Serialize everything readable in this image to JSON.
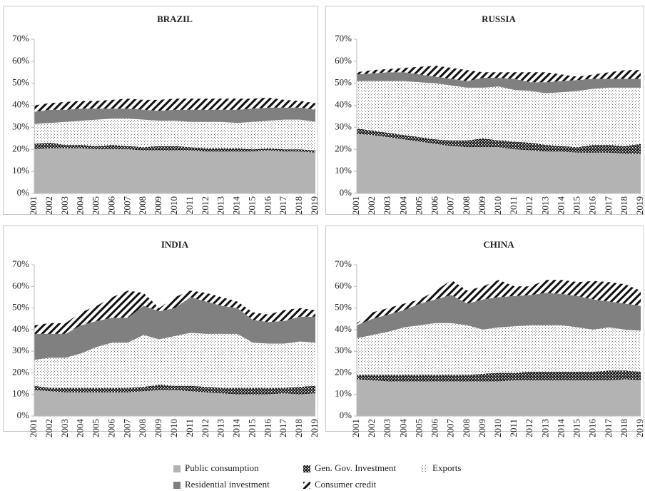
{
  "chart_data": [
    {
      "type": "stacked-area",
      "title": "BRAZIL",
      "x": [
        "2001",
        "2002",
        "2003",
        "2004",
        "2005",
        "2006",
        "2007",
        "2008",
        "2009",
        "2010",
        "2011",
        "2012",
        "2013",
        "2014",
        "2015",
        "2016",
        "2017",
        "2018",
        "2019"
      ],
      "ylim": [
        0,
        70
      ],
      "yticks": [
        {
          "value": 0,
          "label": "0%"
        },
        {
          "value": 10,
          "label": "10%"
        },
        {
          "value": 20,
          "label": "20%"
        },
        {
          "value": 30,
          "label": "30%"
        },
        {
          "value": 40,
          "label": "40%"
        },
        {
          "value": 50,
          "label": "50%"
        },
        {
          "value": 60,
          "label": "60%"
        },
        {
          "value": 70,
          "label": "70%"
        }
      ],
      "series": [
        {
          "name": "Public consumption",
          "color": "#b3b3b3",
          "pattern": "solid",
          "values": [
            20,
            20.5,
            20.5,
            20.5,
            20,
            20,
            20,
            19.5,
            19.5,
            19.5,
            19.5,
            19,
            19,
            19,
            19,
            19.5,
            19,
            19,
            18.5
          ]
        },
        {
          "name": "Gen. Gov. Investment",
          "color": "#111111",
          "pattern": "checker",
          "values": [
            2.5,
            2.5,
            1.5,
            1.5,
            1.5,
            2,
            1.5,
            1.5,
            2,
            2,
            1.5,
            1.5,
            1.5,
            1.5,
            1,
            1,
            1,
            1,
            1
          ]
        },
        {
          "name": "Exports",
          "color": "#777777",
          "pattern": "dots",
          "values": [
            9,
            9,
            10.5,
            11,
            12,
            12,
            12.5,
            12.5,
            11.5,
            11.5,
            11.5,
            12,
            12,
            11.5,
            12.5,
            12.5,
            13.5,
            13.5,
            13
          ]
        },
        {
          "name": "Residential investment",
          "color": "#808080",
          "pattern": "solid",
          "values": [
            5.5,
            6,
            5.5,
            5.5,
            5,
            4.5,
            4.5,
            4.5,
            4.5,
            5,
            5.5,
            5.5,
            5.5,
            6,
            6,
            6,
            5.5,
            5.5,
            5.5
          ]
        },
        {
          "name": "Consumer credit",
          "color": "#111111",
          "pattern": "hatch",
          "values": [
            3,
            3,
            3.5,
            3.5,
            3.5,
            4,
            4.5,
            4.5,
            5,
            5,
            5,
            5,
            5,
            5,
            4.5,
            4.5,
            3.5,
            3,
            3
          ]
        }
      ]
    },
    {
      "type": "stacked-area",
      "title": "RUSSIA",
      "x": [
        "2001",
        "2002",
        "2003",
        "2004",
        "2005",
        "2006",
        "2007",
        "2008",
        "2009",
        "2010",
        "2011",
        "2012",
        "2013",
        "2014",
        "2015",
        "2016",
        "2017",
        "2018",
        "2019"
      ],
      "ylim": [
        0,
        70
      ],
      "yticks": [
        {
          "value": 0,
          "label": "0%"
        },
        {
          "value": 10,
          "label": "10%"
        },
        {
          "value": 20,
          "label": "20%"
        },
        {
          "value": 30,
          "label": "30%"
        },
        {
          "value": 40,
          "label": "40%"
        },
        {
          "value": 50,
          "label": "50%"
        },
        {
          "value": 60,
          "label": "60%"
        },
        {
          "value": 70,
          "label": "70%"
        }
      ],
      "series": [
        {
          "color": "#b3b3b3",
          "pattern": "solid",
          "values": [
            27,
            26.5,
            25.5,
            24.5,
            23.5,
            22.5,
            21.5,
            21,
            21,
            21,
            20,
            19.5,
            19,
            19,
            18.5,
            18.5,
            18.5,
            18,
            18
          ]
        },
        {
          "color": "#111111",
          "pattern": "checker",
          "values": [
            2.5,
            2,
            2,
            2,
            2,
            2,
            2.5,
            3,
            4,
            3,
            3.5,
            3.5,
            3,
            2.5,
            2.5,
            3.5,
            3.5,
            3.5,
            4.5
          ]
        },
        {
          "color": "#777777",
          "pattern": "dots",
          "values": [
            21.5,
            22.5,
            23.5,
            24.5,
            25,
            25.5,
            25,
            24,
            23,
            24.5,
            23.5,
            23.5,
            23.5,
            24.5,
            25.5,
            25.5,
            26,
            26.5,
            25.5
          ]
        },
        {
          "color": "#808080",
          "pattern": "solid",
          "values": [
            3,
            3.5,
            4,
            4,
            3.5,
            3,
            3,
            3,
            4.5,
            4,
            5,
            4,
            5,
            5,
            5,
            4.5,
            4,
            4,
            4
          ]
        },
        {
          "color": "#111111",
          "pattern": "hatch",
          "values": [
            1,
            1.5,
            1.5,
            2,
            3.5,
            5,
            5,
            5,
            2.5,
            2.5,
            3,
            4.5,
            4.5,
            3,
            1.5,
            2,
            3,
            4,
            4
          ]
        }
      ]
    },
    {
      "type": "stacked-area",
      "title": "INDIA",
      "x": [
        "2001",
        "2002",
        "2003",
        "2004",
        "2005",
        "2006",
        "2007",
        "2008",
        "2009",
        "2010",
        "2011",
        "2012",
        "2013",
        "2014",
        "2015",
        "2016",
        "2017",
        "2018",
        "2019"
      ],
      "ylim": [
        0,
        70
      ],
      "yticks": [
        {
          "value": 0,
          "label": "0%"
        },
        {
          "value": 10,
          "label": "10%"
        },
        {
          "value": 20,
          "label": "20%"
        },
        {
          "value": 30,
          "label": "30%"
        },
        {
          "value": 40,
          "label": "40%"
        },
        {
          "value": 50,
          "label": "50%"
        },
        {
          "value": 60,
          "label": "60%"
        },
        {
          "value": 70,
          "label": "70%"
        }
      ],
      "series": [
        {
          "color": "#b3b3b3",
          "pattern": "solid",
          "values": [
            12,
            11.5,
            11,
            11,
            11,
            11,
            11,
            11.5,
            12,
            12,
            11.5,
            11,
            10.5,
            10,
            10,
            10,
            10.5,
            10,
            10.5
          ]
        },
        {
          "color": "#111111",
          "pattern": "checker",
          "values": [
            2,
            1.5,
            2,
            2,
            2,
            2,
            2,
            2,
            2.5,
            2,
            2.5,
            2.5,
            2.5,
            3,
            3,
            3,
            2.5,
            3.5,
            3.5
          ]
        },
        {
          "color": "#777777",
          "pattern": "dots",
          "values": [
            12,
            14,
            14,
            16,
            19,
            21,
            21,
            24,
            21,
            23,
            24.5,
            24.5,
            25,
            25,
            21,
            20.5,
            20.5,
            21,
            20
          ]
        },
        {
          "color": "#808080",
          "pattern": "solid",
          "values": [
            12,
            11,
            11,
            13,
            12,
            11.5,
            11.5,
            13.5,
            13,
            13,
            16.5,
            15,
            13,
            12,
            10.5,
            10,
            10.5,
            11.5,
            12
          ]
        },
        {
          "color": "#111111",
          "pattern": "hatch",
          "values": [
            4,
            5,
            5,
            6,
            7,
            9.5,
            12.5,
            6,
            1.5,
            5,
            3,
            4,
            4,
            3,
            3.5,
            3.5,
            5,
            4,
            3
          ]
        }
      ]
    },
    {
      "type": "stacked-area",
      "title": "CHINA",
      "x": [
        "2001",
        "2002",
        "2003",
        "2004",
        "2005",
        "2006",
        "2007",
        "2008",
        "2009",
        "2010",
        "2011",
        "2012",
        "2013",
        "2014",
        "2015",
        "2016",
        "2017",
        "2018",
        "2019"
      ],
      "ylim": [
        0,
        70
      ],
      "yticks": [
        {
          "value": 0,
          "label": "0%"
        },
        {
          "value": 10,
          "label": "10%"
        },
        {
          "value": 20,
          "label": "20%"
        },
        {
          "value": 30,
          "label": "30%"
        },
        {
          "value": 40,
          "label": "40%"
        },
        {
          "value": 50,
          "label": "50%"
        },
        {
          "value": 60,
          "label": "60%"
        },
        {
          "value": 70,
          "label": "70%"
        }
      ],
      "series": [
        {
          "color": "#b3b3b3",
          "pattern": "solid",
          "values": [
            17,
            16.5,
            16,
            16,
            16,
            16,
            16,
            16,
            16,
            16,
            16.5,
            16.5,
            16.5,
            16.5,
            16.5,
            16.5,
            16.5,
            17,
            16.5
          ]
        },
        {
          "color": "#111111",
          "pattern": "checker",
          "values": [
            2,
            2.5,
            3,
            3,
            3,
            3,
            3,
            3,
            3.5,
            4,
            3.5,
            4,
            4,
            4,
            4,
            4,
            4.5,
            4,
            4
          ]
        },
        {
          "color": "#777777",
          "pattern": "dots",
          "values": [
            17,
            18.5,
            20,
            22,
            23,
            24,
            24,
            23,
            20.5,
            21,
            21.5,
            21.5,
            21.5,
            21.5,
            20.5,
            19.5,
            20,
            19,
            19
          ]
        },
        {
          "color": "#808080",
          "pattern": "solid",
          "values": [
            6,
            7.5,
            8,
            8,
            10,
            11,
            13,
            10,
            14,
            14,
            14,
            14,
            15,
            14.5,
            14.5,
            14,
            12,
            12,
            11.5
          ]
        },
        {
          "color": "#111111",
          "pattern": "hatch",
          "values": [
            1,
            3,
            3,
            3,
            2,
            4,
            7,
            6,
            6,
            8,
            4.5,
            4,
            6,
            6.5,
            6.5,
            8.5,
            9,
            9,
            7
          ]
        }
      ]
    }
  ]
}
